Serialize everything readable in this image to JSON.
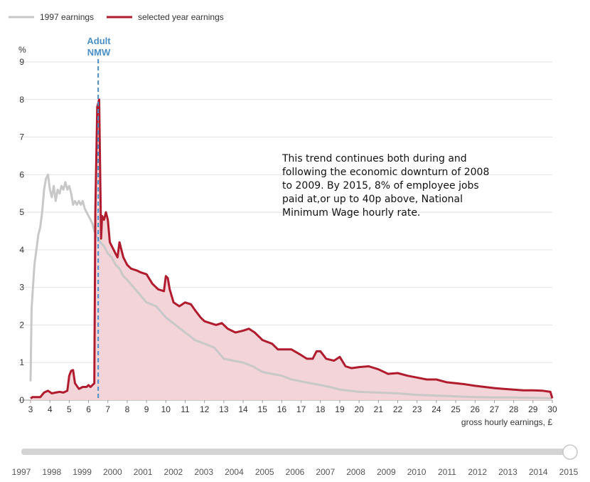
{
  "chart_data": {
    "type": "area",
    "title": "",
    "xlabel": "gross hourly earnings, £",
    "ylabel": "%",
    "xlim": [
      3,
      30
    ],
    "ylim": [
      0,
      9
    ],
    "x_ticks": [
      3,
      4,
      5,
      6,
      7,
      8,
      9,
      10,
      11,
      12,
      13,
      14,
      15,
      16,
      17,
      18,
      19,
      20,
      21,
      22,
      23,
      24,
      25,
      26,
      27,
      28,
      29,
      30
    ],
    "y_ticks": [
      0,
      1,
      2,
      3,
      4,
      5,
      6,
      7,
      8,
      9
    ],
    "grid": "horizontal",
    "legend": "top-left",
    "reference_line": {
      "label_lines": [
        "Adult",
        "NMW"
      ],
      "x": 6.5,
      "color": "#4a8fc7"
    },
    "annotation": "This trend continues both during and following the economic downturn of 2008 to 2009. By 2015, 8% of employee jobs paid at,or up to 40p above, National Minimum Wage hourly rate.",
    "series": [
      {
        "name": "1997 earnings",
        "color": "#c8c8c8",
        "points": [
          [
            3.0,
            0.5
          ],
          [
            3.05,
            2.4
          ],
          [
            3.1,
            2.8
          ],
          [
            3.2,
            3.6
          ],
          [
            3.3,
            4.0
          ],
          [
            3.4,
            4.4
          ],
          [
            3.5,
            4.6
          ],
          [
            3.6,
            5.0
          ],
          [
            3.7,
            5.6
          ],
          [
            3.8,
            5.9
          ],
          [
            3.9,
            6.0
          ],
          [
            4.0,
            5.6
          ],
          [
            4.1,
            5.4
          ],
          [
            4.2,
            5.7
          ],
          [
            4.3,
            5.3
          ],
          [
            4.4,
            5.6
          ],
          [
            4.5,
            5.5
          ],
          [
            4.6,
            5.7
          ],
          [
            4.7,
            5.6
          ],
          [
            4.8,
            5.8
          ],
          [
            4.9,
            5.6
          ],
          [
            5.0,
            5.7
          ],
          [
            5.1,
            5.5
          ],
          [
            5.2,
            5.2
          ],
          [
            5.3,
            5.3
          ],
          [
            5.4,
            5.2
          ],
          [
            5.5,
            5.3
          ],
          [
            5.6,
            5.2
          ],
          [
            5.7,
            5.3
          ],
          [
            5.8,
            5.1
          ],
          [
            5.9,
            5.0
          ],
          [
            6.0,
            4.9
          ],
          [
            6.1,
            4.8
          ],
          [
            6.2,
            4.7
          ],
          [
            6.3,
            4.5
          ],
          [
            6.4,
            4.4
          ],
          [
            6.5,
            4.3
          ],
          [
            6.6,
            4.2
          ],
          [
            6.8,
            4.1
          ],
          [
            7.0,
            3.9
          ],
          [
            7.2,
            3.8
          ],
          [
            7.4,
            3.6
          ],
          [
            7.6,
            3.5
          ],
          [
            7.8,
            3.3
          ],
          [
            8.0,
            3.2
          ],
          [
            8.5,
            2.9
          ],
          [
            9.0,
            2.6
          ],
          [
            9.5,
            2.5
          ],
          [
            10.0,
            2.2
          ],
          [
            10.5,
            2.0
          ],
          [
            11.0,
            1.8
          ],
          [
            11.5,
            1.6
          ],
          [
            12.0,
            1.5
          ],
          [
            12.5,
            1.4
          ],
          [
            13.0,
            1.1
          ],
          [
            13.5,
            1.05
          ],
          [
            14.0,
            1.0
          ],
          [
            14.5,
            0.9
          ],
          [
            15.0,
            0.75
          ],
          [
            15.5,
            0.7
          ],
          [
            16.0,
            0.65
          ],
          [
            16.5,
            0.55
          ],
          [
            17.0,
            0.5
          ],
          [
            17.5,
            0.45
          ],
          [
            18.0,
            0.4
          ],
          [
            18.5,
            0.35
          ],
          [
            19.0,
            0.28
          ],
          [
            19.5,
            0.25
          ],
          [
            20.0,
            0.22
          ],
          [
            21.0,
            0.2
          ],
          [
            22.0,
            0.18
          ],
          [
            23.0,
            0.14
          ],
          [
            24.0,
            0.12
          ],
          [
            25.0,
            0.1
          ],
          [
            26.0,
            0.08
          ],
          [
            27.0,
            0.07
          ],
          [
            28.0,
            0.07
          ],
          [
            29.0,
            0.06
          ],
          [
            30.0,
            0.05
          ]
        ]
      },
      {
        "name": "selected year earnings",
        "color": "#b01c2e",
        "fill": "#f3d4d8",
        "points": [
          [
            3.0,
            0.05
          ],
          [
            3.1,
            0.08
          ],
          [
            3.5,
            0.08
          ],
          [
            3.7,
            0.2
          ],
          [
            3.9,
            0.25
          ],
          [
            4.1,
            0.18
          ],
          [
            4.3,
            0.2
          ],
          [
            4.5,
            0.22
          ],
          [
            4.7,
            0.2
          ],
          [
            4.9,
            0.25
          ],
          [
            5.0,
            0.65
          ],
          [
            5.1,
            0.78
          ],
          [
            5.2,
            0.8
          ],
          [
            5.3,
            0.45
          ],
          [
            5.5,
            0.3
          ],
          [
            5.7,
            0.35
          ],
          [
            5.9,
            0.35
          ],
          [
            6.0,
            0.4
          ],
          [
            6.1,
            0.35
          ],
          [
            6.2,
            0.4
          ],
          [
            6.3,
            0.45
          ],
          [
            6.35,
            5.0
          ],
          [
            6.45,
            7.8
          ],
          [
            6.55,
            8.0
          ],
          [
            6.65,
            4.3
          ],
          [
            6.7,
            4.9
          ],
          [
            6.8,
            4.8
          ],
          [
            6.9,
            5.0
          ],
          [
            7.0,
            4.8
          ],
          [
            7.1,
            4.2
          ],
          [
            7.2,
            4.1
          ],
          [
            7.3,
            4.0
          ],
          [
            7.5,
            3.8
          ],
          [
            7.6,
            4.2
          ],
          [
            7.8,
            3.8
          ],
          [
            8.0,
            3.6
          ],
          [
            8.2,
            3.5
          ],
          [
            8.5,
            3.45
          ],
          [
            8.7,
            3.4
          ],
          [
            9.0,
            3.35
          ],
          [
            9.3,
            3.1
          ],
          [
            9.6,
            2.95
          ],
          [
            9.9,
            2.9
          ],
          [
            10.0,
            3.3
          ],
          [
            10.1,
            3.25
          ],
          [
            10.2,
            2.95
          ],
          [
            10.4,
            2.6
          ],
          [
            10.7,
            2.5
          ],
          [
            11.0,
            2.6
          ],
          [
            11.3,
            2.55
          ],
          [
            11.5,
            2.4
          ],
          [
            11.8,
            2.2
          ],
          [
            12.0,
            2.1
          ],
          [
            12.3,
            2.05
          ],
          [
            12.6,
            2.0
          ],
          [
            12.9,
            2.05
          ],
          [
            13.2,
            1.9
          ],
          [
            13.6,
            1.8
          ],
          [
            14.0,
            1.85
          ],
          [
            14.3,
            1.9
          ],
          [
            14.6,
            1.8
          ],
          [
            15.0,
            1.6
          ],
          [
            15.5,
            1.5
          ],
          [
            15.8,
            1.35
          ],
          [
            16.0,
            1.35
          ],
          [
            16.5,
            1.35
          ],
          [
            17.0,
            1.2
          ],
          [
            17.3,
            1.1
          ],
          [
            17.6,
            1.1
          ],
          [
            17.8,
            1.3
          ],
          [
            18.0,
            1.3
          ],
          [
            18.3,
            1.1
          ],
          [
            18.7,
            1.05
          ],
          [
            19.0,
            1.15
          ],
          [
            19.3,
            0.9
          ],
          [
            19.6,
            0.85
          ],
          [
            20.0,
            0.88
          ],
          [
            20.5,
            0.9
          ],
          [
            21.0,
            0.82
          ],
          [
            21.5,
            0.7
          ],
          [
            22.0,
            0.72
          ],
          [
            22.5,
            0.65
          ],
          [
            23.0,
            0.6
          ],
          [
            23.5,
            0.55
          ],
          [
            24.0,
            0.55
          ],
          [
            24.5,
            0.48
          ],
          [
            25.0,
            0.45
          ],
          [
            25.5,
            0.42
          ],
          [
            26.0,
            0.38
          ],
          [
            26.5,
            0.35
          ],
          [
            27.0,
            0.32
          ],
          [
            27.5,
            0.3
          ],
          [
            28.0,
            0.28
          ],
          [
            28.5,
            0.26
          ],
          [
            29.0,
            0.26
          ],
          [
            29.5,
            0.25
          ],
          [
            29.9,
            0.22
          ],
          [
            30.0,
            0.05
          ]
        ]
      }
    ]
  },
  "timeline": {
    "years": [
      "1997",
      "1998",
      "1999",
      "2000",
      "2001",
      "2002",
      "2003",
      "2004",
      "2005",
      "2006",
      "2007",
      "2008",
      "2009",
      "2010",
      "2011",
      "2012",
      "2013",
      "2014",
      "2015"
    ],
    "selected_year": "2015"
  }
}
